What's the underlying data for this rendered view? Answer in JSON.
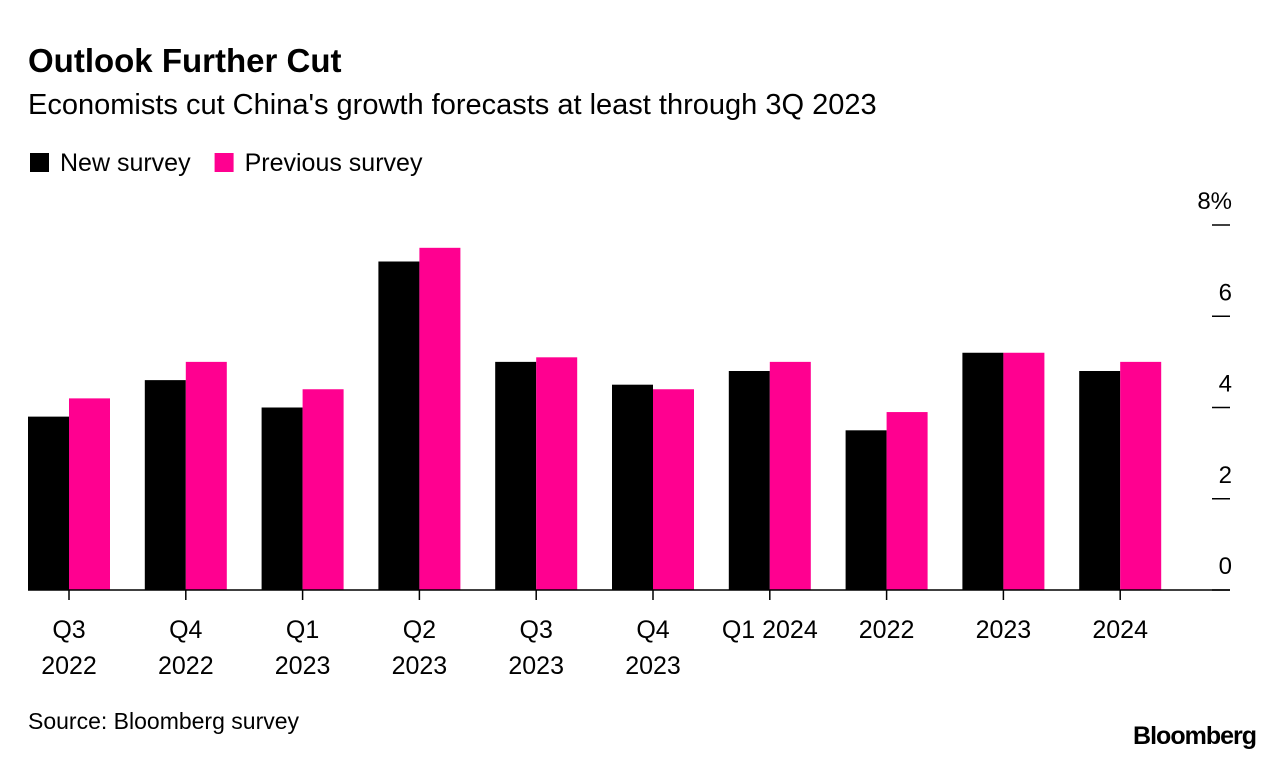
{
  "chart_data": {
    "type": "bar",
    "title": "Outlook Further Cut",
    "subtitle": "Economists cut China's growth forecasts at least through 3Q 2023",
    "categories": [
      [
        "Q3",
        "2022"
      ],
      [
        "Q4",
        "2022"
      ],
      [
        "Q1",
        "2023"
      ],
      [
        "Q2",
        "2023"
      ],
      [
        "Q3",
        "2023"
      ],
      [
        "Q4",
        "2023"
      ],
      [
        "Q1 2024"
      ],
      [
        "2022"
      ],
      [
        "2023"
      ],
      [
        "2024"
      ]
    ],
    "series": [
      {
        "name": "New survey",
        "color": "#000000",
        "values": [
          3.8,
          4.6,
          4.0,
          7.2,
          5.0,
          4.5,
          4.8,
          3.5,
          5.2,
          4.8
        ]
      },
      {
        "name": "Previous survey",
        "color": "#ff0090",
        "values": [
          4.2,
          5.0,
          4.4,
          7.5,
          5.1,
          4.4,
          5.0,
          3.9,
          5.2,
          5.0
        ]
      }
    ],
    "ylim": [
      0,
      8
    ],
    "yticks": [
      0,
      2,
      4,
      6,
      {
        "value": 8,
        "label": "8%"
      }
    ],
    "source": "Source: Bloomberg survey",
    "logo": "Bloomberg"
  }
}
